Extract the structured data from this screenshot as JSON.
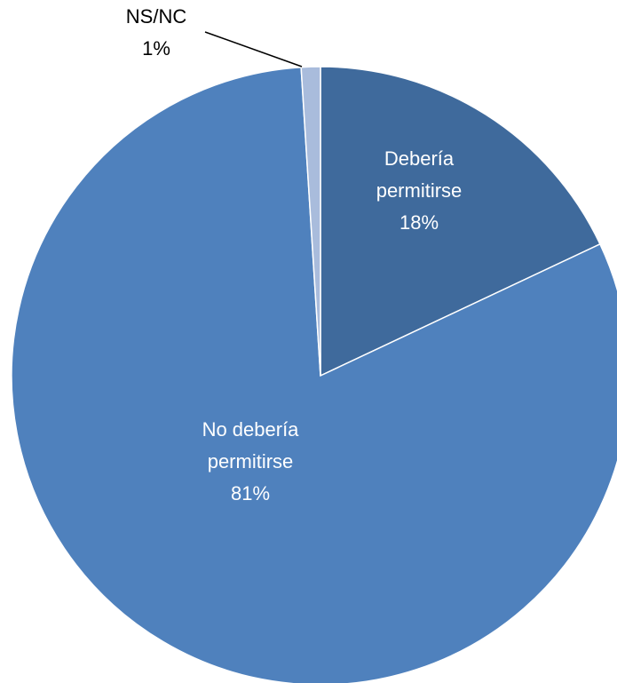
{
  "chart_data": {
    "type": "pie",
    "title": "",
    "slices": [
      {
        "name": "Debería permitirse",
        "label_lines": [
          "Debería",
          "permitirse"
        ],
        "value": 18,
        "value_label": "18%",
        "color": "#3f6a9c",
        "label_color": "#ffffff"
      },
      {
        "name": "No debería permitirse",
        "label_lines": [
          "No debería",
          "permitirse"
        ],
        "value": 81,
        "value_label": "81%",
        "color": "#4f81bd",
        "label_color": "#ffffff"
      },
      {
        "name": "NS/NC",
        "label_lines": [
          "NS/NC"
        ],
        "value": 1,
        "value_label": "1%",
        "color": "#a9bcdc",
        "label_color": "#000000"
      }
    ],
    "start_angle": "12 o'clock",
    "direction": "clockwise",
    "legend": "none"
  }
}
